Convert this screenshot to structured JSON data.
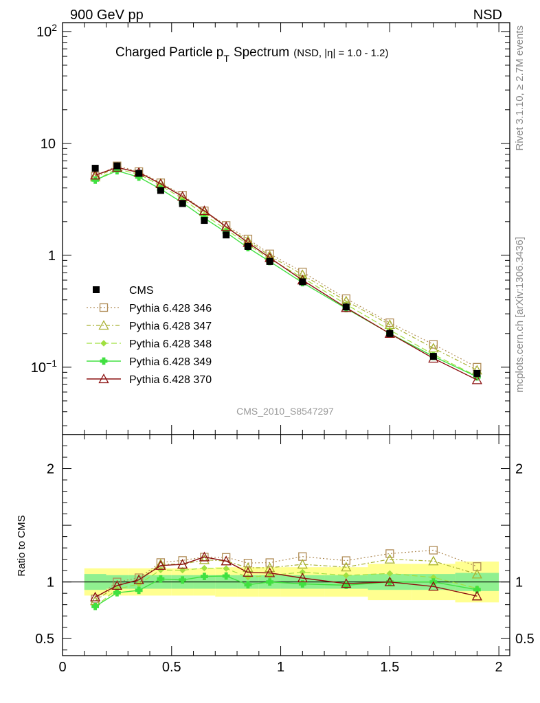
{
  "header": {
    "left": "900 GeV pp",
    "right": "NSD"
  },
  "side_text": {
    "upper": "Rivet 3.1.10, ≥ 2.7M events",
    "lower": "mcplots.cern.ch [arXiv:1306.3436]"
  },
  "chart_data": {
    "type": "line",
    "title": "Charged Particle p",
    "title_subscript": "T",
    "title_suffix": "Spectrum",
    "subtitle": "(NSD, |η| = 1.0 - 1.2)",
    "analysis_label": "CMS_2010_S8547297",
    "x_ticks": [
      "0",
      "0.5",
      "1",
      "1.5",
      "2"
    ],
    "xlim": [
      0,
      2.05
    ],
    "main": {
      "yscale": "log",
      "ylim": [
        0.025,
        120
      ],
      "y_ticks": [
        {
          "value": 100,
          "base": "10",
          "exp": "2"
        },
        {
          "value": 10,
          "base": "10",
          "exp": ""
        },
        {
          "value": 1,
          "base": "1",
          "exp": ""
        },
        {
          "value": 0.1,
          "base": "10",
          "exp": "−1"
        }
      ]
    },
    "ratio": {
      "ylabel": "Ratio to CMS",
      "ylim": [
        0.35,
        2.3
      ],
      "y_ticks": [
        "0.5",
        "1",
        "2"
      ],
      "y_tick_values": [
        0.5,
        1,
        2
      ]
    },
    "x": [
      0.15,
      0.25,
      0.35,
      0.45,
      0.55,
      0.65,
      0.75,
      0.85,
      0.95,
      1.1,
      1.3,
      1.5,
      1.7,
      1.9
    ],
    "data_series": {
      "name": "CMS",
      "color": "#000000",
      "values": [
        6.0,
        6.3,
        5.4,
        3.8,
        2.9,
        2.05,
        1.52,
        1.2,
        0.88,
        0.58,
        0.345,
        0.2,
        0.125,
        0.088
      ],
      "band_inner": [
        [
          0.1,
          0.2,
          0.07
        ],
        [
          0.2,
          0.3,
          0.06
        ],
        [
          0.3,
          0.4,
          0.06
        ],
        [
          0.4,
          0.5,
          0.06
        ],
        [
          0.5,
          0.6,
          0.06
        ],
        [
          0.6,
          0.7,
          0.06
        ],
        [
          0.7,
          0.8,
          0.06
        ],
        [
          0.8,
          0.9,
          0.06
        ],
        [
          0.9,
          1.0,
          0.06
        ],
        [
          1.0,
          1.2,
          0.06
        ],
        [
          1.2,
          1.4,
          0.06
        ],
        [
          1.4,
          1.6,
          0.07
        ],
        [
          1.6,
          1.8,
          0.07
        ],
        [
          1.8,
          2.0,
          0.08
        ]
      ],
      "band_outer": [
        [
          0.1,
          0.2,
          0.12
        ],
        [
          0.2,
          0.3,
          0.12
        ],
        [
          0.3,
          0.4,
          0.12
        ],
        [
          0.4,
          0.5,
          0.12
        ],
        [
          0.5,
          0.6,
          0.12
        ],
        [
          0.6,
          0.7,
          0.12
        ],
        [
          0.7,
          0.8,
          0.13
        ],
        [
          0.8,
          0.9,
          0.13
        ],
        [
          0.9,
          1.0,
          0.13
        ],
        [
          1.0,
          1.2,
          0.13
        ],
        [
          1.2,
          1.4,
          0.13
        ],
        [
          1.4,
          1.6,
          0.16
        ],
        [
          1.6,
          1.8,
          0.16
        ],
        [
          1.8,
          2.0,
          0.18
        ]
      ]
    },
    "series": [
      {
        "name": "Pythia 6.428 346",
        "color": "#b08c56",
        "dash": "2,3",
        "marker": "square",
        "width": 1.2,
        "values": [
          5.1,
          6.3,
          5.6,
          4.45,
          3.45,
          2.5,
          1.85,
          1.4,
          1.03,
          0.71,
          0.41,
          0.25,
          0.16,
          0.1
        ]
      },
      {
        "name": "Pythia 6.428 347",
        "color": "#a8b030",
        "dash": "6,3,2,3",
        "marker": "triangle",
        "width": 1.2,
        "values": [
          5.0,
          6.1,
          5.5,
          4.4,
          3.35,
          2.45,
          1.8,
          1.35,
          0.99,
          0.67,
          0.39,
          0.24,
          0.148,
          0.094
        ]
      },
      {
        "name": "Pythia 6.428 348",
        "color": "#a0e040",
        "dash": "8,4",
        "marker": "diamond",
        "width": 1.2,
        "values": [
          4.7,
          5.9,
          5.3,
          4.2,
          3.2,
          2.3,
          1.7,
          1.25,
          0.93,
          0.63,
          0.365,
          0.215,
          0.13,
          0.083
        ]
      },
      {
        "name": "Pythia 6.428 349",
        "color": "#40e040",
        "dash": "",
        "marker": "cross",
        "width": 1.4,
        "values": [
          4.7,
          5.7,
          5.0,
          3.9,
          2.95,
          2.15,
          1.6,
          1.17,
          0.88,
          0.57,
          0.335,
          0.2,
          0.125,
          0.082
        ]
      },
      {
        "name": "Pythia 6.428 370",
        "color": "#8b1010",
        "dash": "",
        "marker": "triangle",
        "width": 1.4,
        "values": [
          5.2,
          6.1,
          5.5,
          4.35,
          3.35,
          2.5,
          1.8,
          1.3,
          0.95,
          0.6,
          0.34,
          0.2,
          0.12,
          0.077
        ]
      }
    ]
  }
}
